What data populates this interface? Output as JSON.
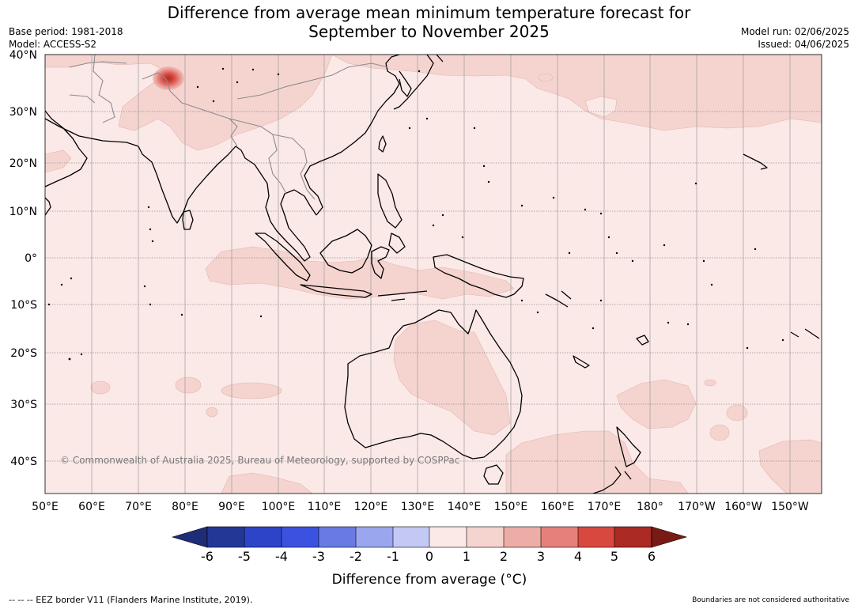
{
  "title": {
    "line1": "Difference from average mean minimum temperature forecast for",
    "line2": "September to November 2025"
  },
  "meta_left": {
    "base_period": "Base period: 1981-2018",
    "model": "Model: ACCESS-S2"
  },
  "meta_right": {
    "model_run": "Model run: 02/06/2025",
    "issued": "Issued: 04/06/2025"
  },
  "map": {
    "copyright": "© Commonwealth of Australia 2025, Bureau of Meteorology, supported by COSPPac",
    "lon_labels": [
      "50°E",
      "60°E",
      "70°E",
      "80°E",
      "90°E",
      "100°E",
      "110°E",
      "120°E",
      "130°E",
      "140°E",
      "150°E",
      "160°E",
      "170°E",
      "180°",
      "170°W",
      "160°W",
      "150°W"
    ],
    "lat_labels": [
      "40°N",
      "30°N",
      "20°N",
      "10°N",
      "0°",
      "10°S",
      "20°S",
      "30°S",
      "40°S"
    ],
    "background_color": "#fbe9e7",
    "anomaly_colors": {
      "0_to_1": "#fbe9e7",
      "1_to_2": "#f5d4d0",
      "2_to_3": "#ecada6",
      "3_to_4": "#e4817a",
      "4_to_5": "#d9483e",
      "5_to_6": "#ab2a24"
    }
  },
  "colorbar": {
    "title": "Difference from average (°C)",
    "tick_labels": [
      "-6",
      "-5",
      "-4",
      "-3",
      "-2",
      "-1",
      "0",
      "1",
      "2",
      "3",
      "4",
      "5",
      "6"
    ],
    "colors": [
      "#233896",
      "#2c44c8",
      "#3b52e0",
      "#6a7ae4",
      "#9aa6ee",
      "#c4c9f4",
      "#e9ebfa",
      "#fbe9e7",
      "#f5d4d0",
      "#ecada6",
      "#e4817a",
      "#d9483e",
      "#ab2a24"
    ],
    "under_color": "#1f2d78",
    "over_color": "#7a1a16"
  },
  "footer": {
    "left": "--  --  -- EEZ border V11 (Flanders Marine Institute, 2019).",
    "right": "Boundaries are not considered authoritative"
  }
}
